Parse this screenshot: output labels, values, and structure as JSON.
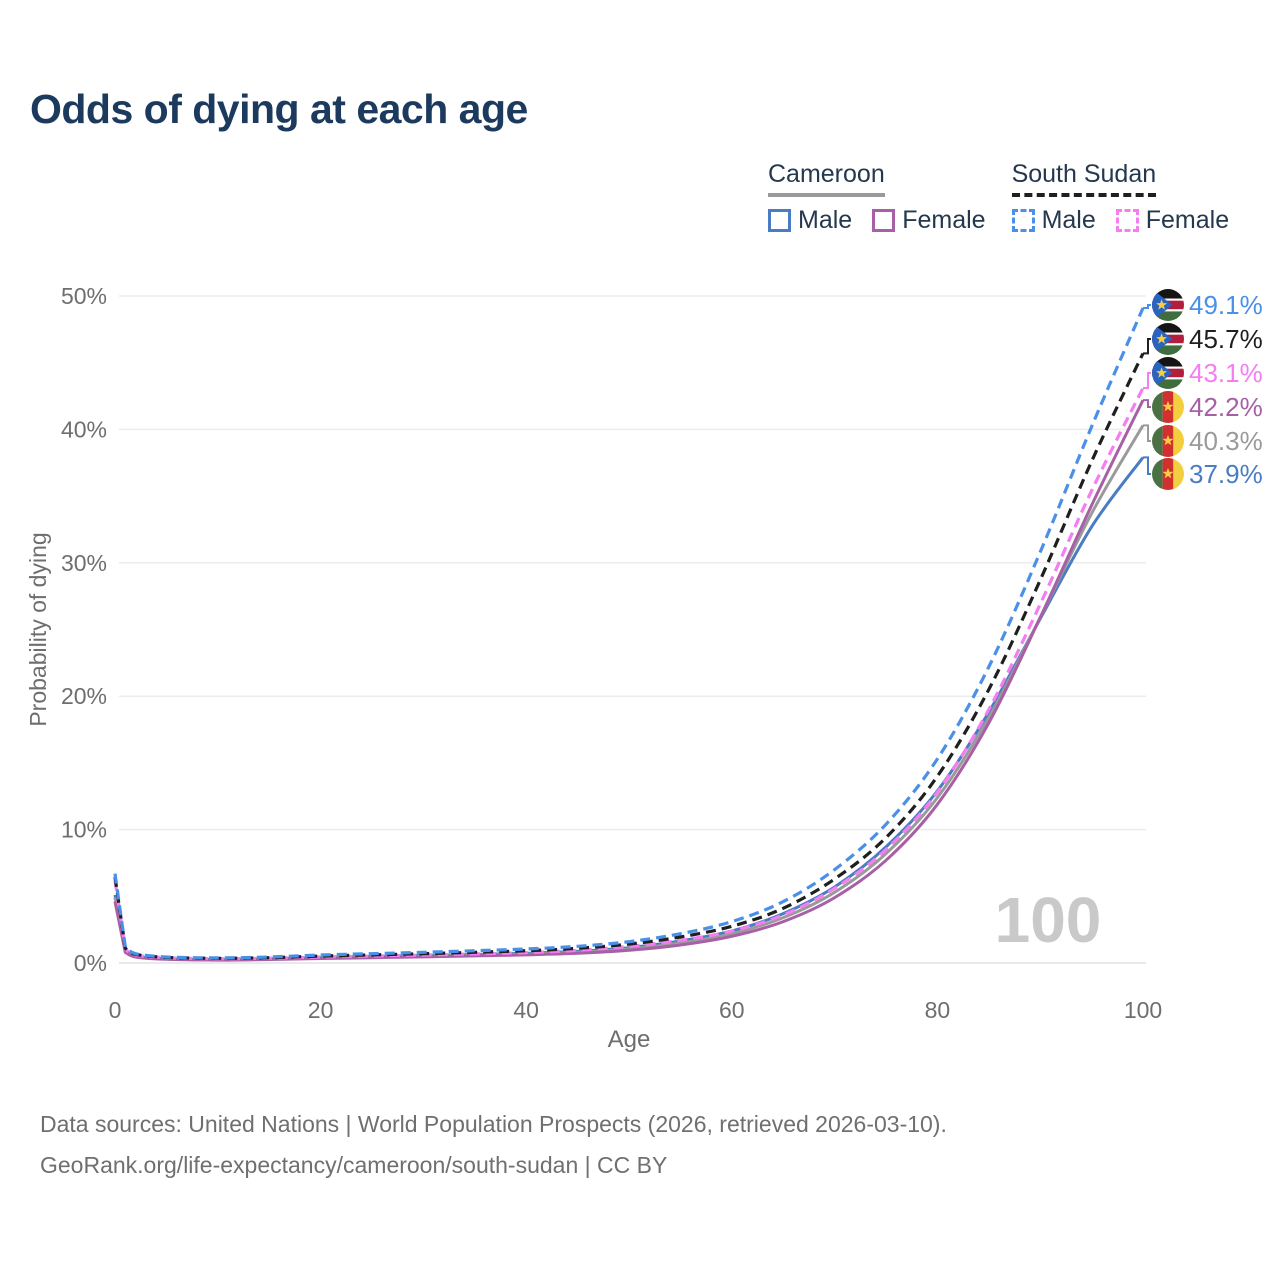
{
  "title": "Odds of dying at each age",
  "legend": {
    "groups": [
      {
        "label": "Cameroon",
        "underline_style": "solid",
        "underline_color": "#9a9a9a",
        "items": [
          {
            "label": "Male",
            "color": "#4a7cc4",
            "dashed": false
          },
          {
            "label": "Female",
            "color": "#a75fa5",
            "dashed": false
          }
        ]
      },
      {
        "label": "South Sudan",
        "underline_style": "dashed",
        "underline_color": "#1f1f1f",
        "items": [
          {
            "label": "Male",
            "color": "#4a90e8",
            "dashed": true
          },
          {
            "label": "Female",
            "color": "#f57df2",
            "dashed": true
          }
        ]
      }
    ]
  },
  "chart_data": {
    "type": "line",
    "title": "Odds of dying at each age",
    "xlabel": "Age",
    "ylabel": "Probability of dying",
    "xlim": [
      0,
      100
    ],
    "ylim": [
      0,
      50
    ],
    "grid": "horizontal",
    "watermark": "100",
    "x_ticks": [
      {
        "value": 0,
        "label": "0"
      },
      {
        "value": 20,
        "label": "20"
      },
      {
        "value": 40,
        "label": "40"
      },
      {
        "value": 60,
        "label": "60"
      },
      {
        "value": 80,
        "label": "80"
      },
      {
        "value": 100,
        "label": "100"
      }
    ],
    "y_ticks": [
      {
        "value": 0,
        "label": "0%"
      },
      {
        "value": 10,
        "label": "10%"
      },
      {
        "value": 20,
        "label": "20%"
      },
      {
        "value": 30,
        "label": "30%"
      },
      {
        "value": 40,
        "label": "40%"
      },
      {
        "value": 50,
        "label": "50%"
      }
    ],
    "ages": [
      0,
      1,
      2,
      5,
      10,
      15,
      20,
      25,
      30,
      35,
      40,
      45,
      50,
      55,
      60,
      65,
      70,
      75,
      80,
      85,
      90,
      95,
      100
    ],
    "series": [
      {
        "name": "South Sudan Male",
        "country": "South Sudan",
        "sex": "Male",
        "color": "#4a90e8",
        "dashed": true,
        "flag": "south-sudan",
        "end_value": 49.1,
        "end_label": "49.1%",
        "values": [
          6.7,
          1.2,
          0.7,
          0.45,
          0.38,
          0.45,
          0.6,
          0.7,
          0.8,
          0.92,
          1.05,
          1.25,
          1.6,
          2.2,
          3.1,
          4.6,
          7.0,
          10.4,
          15.3,
          22.2,
          30.8,
          40.2,
          49.1
        ]
      },
      {
        "name": "South Sudan Both Sexes",
        "country": "South Sudan",
        "sex": "Both",
        "color": "#1f1f1f",
        "dashed": true,
        "flag": "south-sudan",
        "end_value": 45.7,
        "end_label": "45.7%",
        "values": [
          6.45,
          1.1,
          0.65,
          0.42,
          0.35,
          0.4,
          0.52,
          0.61,
          0.7,
          0.8,
          0.92,
          1.1,
          1.42,
          1.95,
          2.75,
          4.1,
          6.3,
          9.4,
          14.0,
          20.5,
          28.7,
          37.6,
          45.7
        ]
      },
      {
        "name": "South Sudan Female",
        "country": "South Sudan",
        "sex": "Female",
        "color": "#f57df2",
        "dashed": true,
        "flag": "south-sudan",
        "end_value": 43.1,
        "end_label": "43.1%",
        "values": [
          6.2,
          1.05,
          0.6,
          0.4,
          0.32,
          0.36,
          0.45,
          0.52,
          0.6,
          0.68,
          0.78,
          0.95,
          1.25,
          1.7,
          2.4,
          3.6,
          5.6,
          8.5,
          12.8,
          19.0,
          26.9,
          35.4,
          43.1
        ]
      },
      {
        "name": "Cameroon Female",
        "country": "Cameroon",
        "sex": "Female",
        "color": "#a75fa5",
        "dashed": false,
        "flag": "cameroon",
        "end_value": 42.2,
        "end_label": "42.2%",
        "values": [
          4.6,
          0.8,
          0.45,
          0.28,
          0.22,
          0.26,
          0.34,
          0.4,
          0.46,
          0.53,
          0.61,
          0.73,
          0.95,
          1.35,
          2.0,
          3.1,
          4.9,
          7.7,
          11.9,
          18.0,
          25.9,
          34.3,
          42.2
        ]
      },
      {
        "name": "Cameroon Both Sexes",
        "country": "Cameroon",
        "sex": "Both",
        "color": "#9a9a9a",
        "dashed": false,
        "flag": "cameroon",
        "end_value": 40.3,
        "end_label": "40.3%",
        "values": [
          4.9,
          0.85,
          0.48,
          0.3,
          0.24,
          0.29,
          0.38,
          0.44,
          0.51,
          0.58,
          0.67,
          0.8,
          1.05,
          1.5,
          2.2,
          3.4,
          5.3,
          8.2,
          12.4,
          18.4,
          25.9,
          33.7,
          40.3
        ]
      },
      {
        "name": "Cameroon Male",
        "country": "Cameroon",
        "sex": "Male",
        "color": "#4a7cc4",
        "dashed": false,
        "flag": "cameroon",
        "end_value": 37.9,
        "end_label": "37.9%",
        "values": [
          5.1,
          0.9,
          0.5,
          0.32,
          0.26,
          0.32,
          0.42,
          0.49,
          0.56,
          0.64,
          0.73,
          0.88,
          1.15,
          1.65,
          2.4,
          3.7,
          5.7,
          8.7,
          12.9,
          18.8,
          25.8,
          32.7,
          37.9
        ]
      }
    ],
    "flag_colors": {
      "south-sudan": {
        "black": "#151515",
        "white": "#ffffff",
        "red": "#b21e3b",
        "green": "#3f6d3e",
        "blue": "#2864c0",
        "yellow": "#f7cf45"
      },
      "cameroon": {
        "green": "#4a7144",
        "red": "#d22f2f",
        "yellow": "#f3ce3f",
        "star": "#f7cf45"
      }
    }
  },
  "footer": {
    "line1": "Data sources: United Nations | World Population Prospects (2026, retrieved 2026-03-10).",
    "line2": "GeoRank.org/life-expectancy/cameroon/south-sudan | CC BY"
  }
}
